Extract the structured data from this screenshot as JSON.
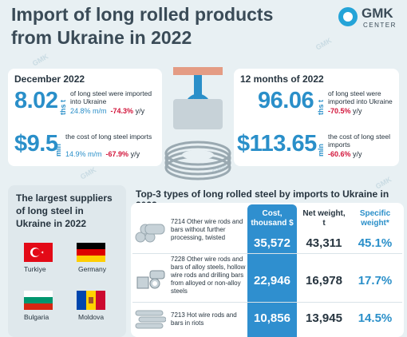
{
  "header": {
    "title_line1": "Import of long rolled products",
    "title_line2": "from Ukraine in 2022",
    "logo_text": "GMK",
    "logo_subtext": "CENTER"
  },
  "december": {
    "label": "December 2022",
    "steel_value": "8.02",
    "steel_unit": "ths t",
    "steel_desc": "of long steel were imported into Ukraine",
    "steel_mm": "24.8% m/m",
    "steel_yy": "-74.3%",
    "cost_value": "$9.5",
    "cost_unit": "mln",
    "cost_desc": "the cost of long steel imports",
    "cost_mm": "14.9% m/m",
    "cost_yy": "-67.9%"
  },
  "year": {
    "label": "12 months of 2022",
    "steel_value": "96.06",
    "steel_unit": "ths t",
    "steel_desc": "of long steel were imported into Ukraine",
    "steel_yy": "-70.5%",
    "cost_value": "$113.65",
    "cost_unit": "mln",
    "cost_desc": "the cost of long steel imports",
    "cost_yy": "-60.6%"
  },
  "yy_suffix": "y/y",
  "suppliers": {
    "title": "The largest suppliers of long steel in Ukraine in 2022",
    "countries": [
      "Turkiye",
      "Germany",
      "Bulgaria",
      "Moldova"
    ]
  },
  "top3": {
    "title": "Top-3 types of long rolled steel by imports to Ukraine in 2022",
    "headers": {
      "cost": "Cost, thousand $",
      "weight": "Net weight, t",
      "share": "Specific weight*"
    },
    "rows": [
      {
        "desc": "7214 Other wire rods and bars without further processing, twisted",
        "cost": "35,572",
        "weight": "43,311",
        "share": "45.1%"
      },
      {
        "desc": "7228 Other wire rods and bars of alloy steels, hollow wire rods and drilling bars from alloyed or non-alloy steels",
        "cost": "22,946",
        "weight": "16,978",
        "share": "17.7%"
      },
      {
        "desc": "7213 Hot wire rods and bars in riots",
        "cost": "10,856",
        "weight": "13,945",
        "share": "14.5%"
      }
    ]
  },
  "colors": {
    "accent": "#2a8fc9",
    "negative": "#d2143a",
    "cost_column": "#2f8fcf"
  },
  "icons": [
    "gmk-logo-icon",
    "wire-coil-icon",
    "crane-hook-icon",
    "rebar-bundle-icon",
    "pipe-bundle-icon",
    "bar-stack-icon"
  ],
  "watermark": "GMK"
}
